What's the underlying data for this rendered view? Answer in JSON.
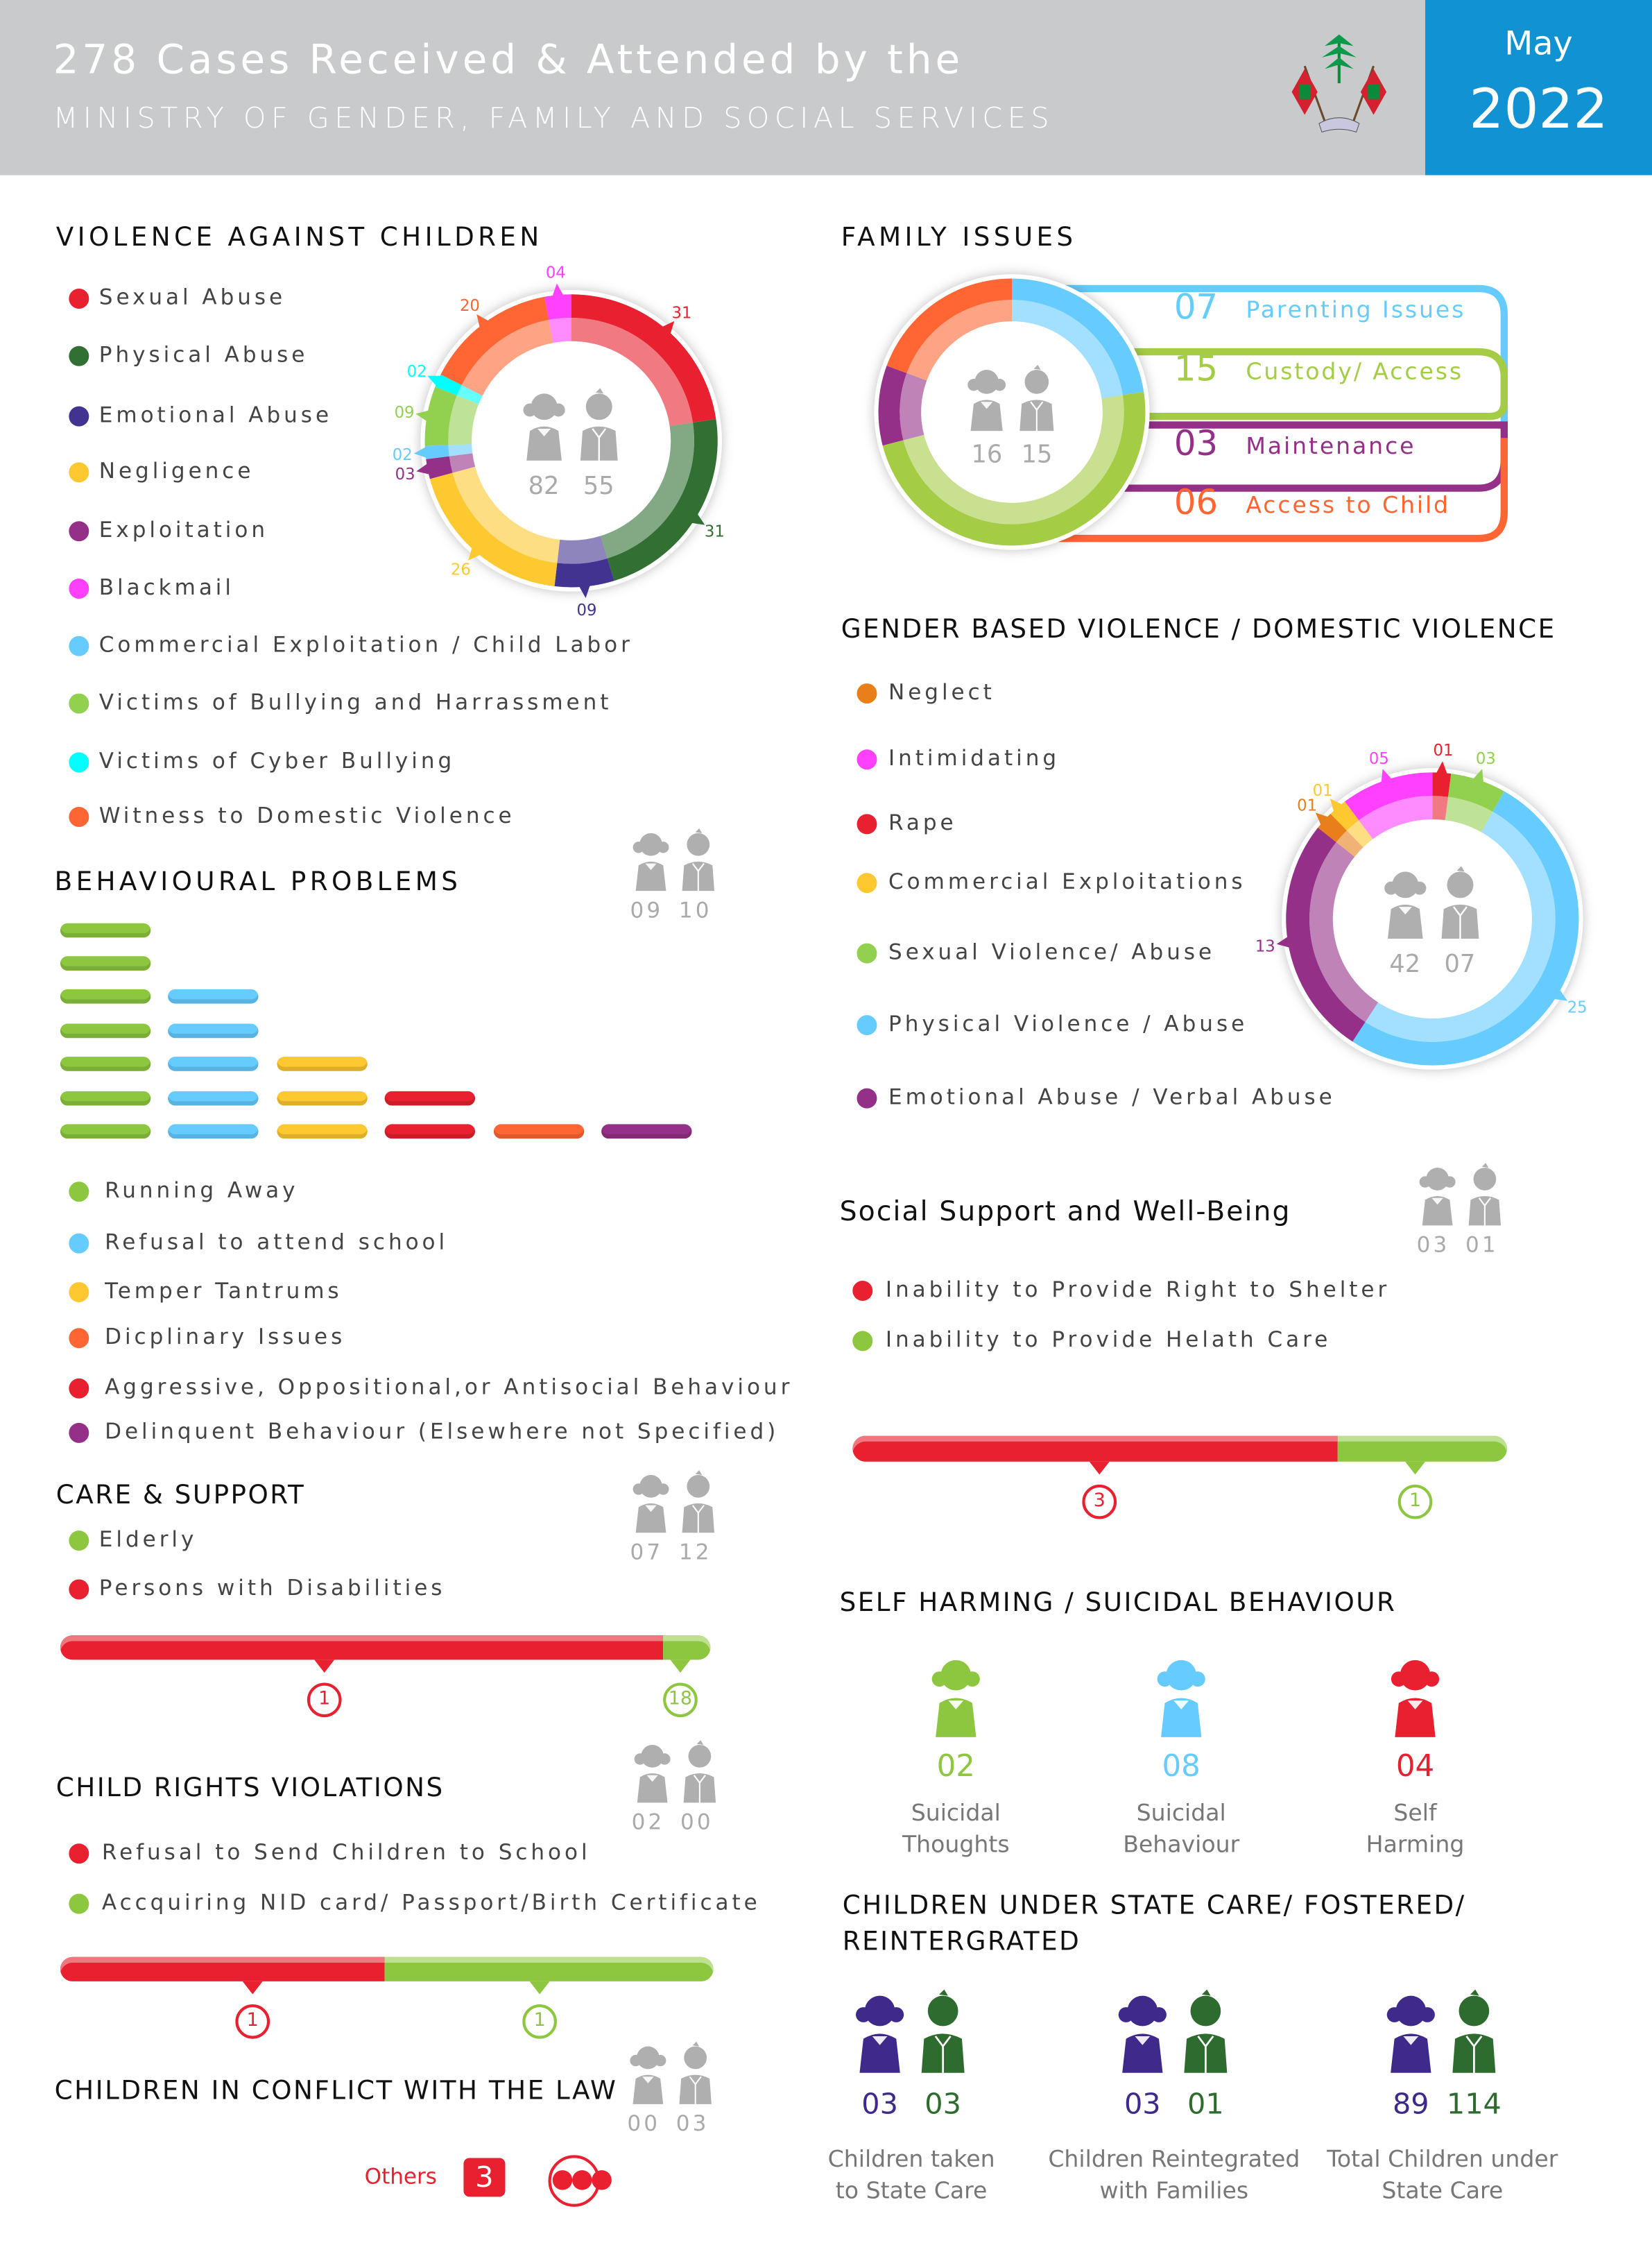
{
  "header": {
    "title": "278 Cases Received & Attended by the",
    "subtitle": "MINISTRY OF GENDER, FAMILY AND SOCIAL SERVICES",
    "month": "May",
    "year": "2022",
    "bg_color": "#c9cacc",
    "accent_color": "#1192d3",
    "emblem_icon": "state-emblem-icon"
  },
  "chart_data": [
    {
      "type": "pie",
      "title": "VIOLENCE AGAINST CHILDREN",
      "center": {
        "girls": "82",
        "boys": "55"
      },
      "slices": [
        {
          "label": "Sexual Abuse",
          "value": 31,
          "text": "31",
          "color": "#e8202f"
        },
        {
          "label": "Physical Abuse",
          "value": 31,
          "text": "31",
          "color": "#317032"
        },
        {
          "label": "Emotional Abuse",
          "value": 9,
          "text": "09",
          "color": "#433390"
        },
        {
          "label": "Negligence",
          "value": 26,
          "text": "26",
          "color": "#fdc830"
        },
        {
          "label": "Exploitation",
          "value": 3,
          "text": "03",
          "color": "#943087"
        },
        {
          "label": "Commercial Exploitation / Child Labor",
          "value": 2,
          "text": "02",
          "color": "#66ccff"
        },
        {
          "label": "Victims of Bullying and Harrassment",
          "value": 9,
          "text": "09",
          "color": "#92d050"
        },
        {
          "label": "Victims of Cyber Bullying",
          "value": 2,
          "text": "02",
          "color": "#00ffff"
        },
        {
          "label": "Witness to Domestic Violence",
          "value": 20,
          "text": "20",
          "color": "#ff6633"
        },
        {
          "label": "Blackmail",
          "value": 4,
          "text": "04",
          "color": "#ff40ff"
        }
      ]
    },
    {
      "type": "pie",
      "title": "FAMILY ISSUES",
      "center": {
        "girls": "16",
        "boys": "15"
      },
      "slices": [
        {
          "label": "Parenting Issues",
          "value": 7,
          "text": "07",
          "color": "#66ccff"
        },
        {
          "label": "Custody/ Access",
          "value": 15,
          "text": "15",
          "color": "#a4cc44"
        },
        {
          "label": "Maintenance",
          "value": 3,
          "text": "03",
          "color": "#943087"
        },
        {
          "label": "Access to Child",
          "value": 6,
          "text": "06",
          "color": "#ff6633"
        }
      ]
    },
    {
      "type": "pie",
      "title": "GENDER BASED VIOLENCE / DOMESTIC VIOLENCE",
      "center": {
        "girls": "42",
        "boys": "07"
      },
      "slices": [
        {
          "label": "Rape",
          "value": 1,
          "text": "01",
          "color": "#e8202f"
        },
        {
          "label": "Sexual Violence/ Abuse",
          "value": 3,
          "text": "03",
          "color": "#92d050"
        },
        {
          "label": "Physical Violence / Abuse",
          "value": 25,
          "text": "25",
          "color": "#66ccff"
        },
        {
          "label": "Emotional Abuse / Verbal Abuse",
          "value": 13,
          "text": "13",
          "color": "#943087"
        },
        {
          "label": "Neglect",
          "value": 1,
          "text": "01",
          "color": "#e87f1a"
        },
        {
          "label": "Commercial Exploitations",
          "value": 1,
          "text": "01",
          "color": "#fdc830"
        },
        {
          "label": "Intimidating",
          "value": 5,
          "text": "05",
          "color": "#ff40ff"
        }
      ]
    },
    {
      "type": "bar",
      "title": "BEHAVIOURAL PROBLEMS",
      "center": {
        "girls": "09",
        "boys": "10"
      },
      "categories": [
        "Running Away",
        "Refusal to attend school",
        "Temper Tantrums",
        "Aggressive, Oppositional,or Antisocial Behaviour",
        "Dicplinary Issues",
        "Delinquent Behaviour (Elsewhere not Specified)"
      ],
      "values": [
        7,
        5,
        3,
        2,
        1,
        1
      ],
      "colors": [
        "#8dc63f",
        "#66ccff",
        "#fdc830",
        "#e8202f",
        "#ff6633",
        "#943087"
      ]
    }
  ],
  "violence": {
    "legend": [
      {
        "label": "Sexual Abuse",
        "color": "#e8202f"
      },
      {
        "label": "Physical Abuse",
        "color": "#317032"
      },
      {
        "label": "Emotional Abuse",
        "color": "#433390"
      },
      {
        "label": "Negligence",
        "color": "#fdc830"
      },
      {
        "label": "Exploitation",
        "color": "#943087"
      },
      {
        "label": "Blackmail",
        "color": "#ff40ff"
      },
      {
        "label": "Commercial Exploitation / Child Labor",
        "color": "#66ccff"
      },
      {
        "label": "Victims of Bullying and Harrassment",
        "color": "#92d050"
      },
      {
        "label": "Victims of Cyber Bullying",
        "color": "#00ffff"
      },
      {
        "label": "Witness to Domestic Violence",
        "color": "#ff6633"
      }
    ]
  },
  "behavioural": {
    "legend": [
      {
        "label": "Running Away",
        "color": "#8dc63f"
      },
      {
        "label": "Refusal to attend school",
        "color": "#66ccff"
      },
      {
        "label": "Temper Tantrums",
        "color": "#fdc830"
      },
      {
        "label": "Dicplinary Issues",
        "color": "#ff6633"
      },
      {
        "label": "Aggressive, Oppositional,or Antisocial Behaviour",
        "color": "#e8202f"
      },
      {
        "label": "Delinquent Behaviour (Elsewhere not Specified)",
        "color": "#943087"
      }
    ]
  },
  "care_support": {
    "title": "CARE & SUPPORT",
    "girls": "07",
    "boys": "12",
    "items": [
      {
        "label": "Elderly",
        "value": 1,
        "text": "1",
        "color": "#8dc63f"
      },
      {
        "label": "Persons with Disabilities",
        "value": 18,
        "text": "18",
        "color": "#e8202f"
      }
    ]
  },
  "child_rights": {
    "title": "CHILD RIGHTS VIOLATIONS",
    "girls": "02",
    "boys": "00",
    "items": [
      {
        "label": "Refusal to Send Children to School",
        "value": 1,
        "text": "1",
        "color": "#e8202f"
      },
      {
        "label": "Accquiring NID card/ Passport/Birth Certificate",
        "value": 1,
        "text": "1",
        "color": "#8dc63f"
      }
    ]
  },
  "conflict_law": {
    "title": "CHILDREN IN CONFLICT WITH THE LAW",
    "girls": "00",
    "boys": "03"
  },
  "others": {
    "label": "Others",
    "count": "3",
    "more_icon": "more-dots-icon"
  },
  "social_support": {
    "title": "Social Support and Well-Being",
    "girls": "03",
    "boys": "01",
    "items": [
      {
        "label": "Inability to Provide Right to Shelter",
        "value": 3,
        "text": "3",
        "color": "#e8202f"
      },
      {
        "label": "Inability to Provide Helath Care",
        "value": 1,
        "text": "1",
        "color": "#8dc63f"
      }
    ]
  },
  "self_harm": {
    "title": "SELF HARMING / SUICIDAL BEHAVIOUR",
    "items": [
      {
        "value": "02",
        "line1": "Suicidal",
        "line2": "Thoughts",
        "color": "#8dc63f"
      },
      {
        "value": "08",
        "line1": "Suicidal",
        "line2": "Behaviour",
        "color": "#66ccff"
      },
      {
        "value": "04",
        "line1": "Self",
        "line2": "Harming",
        "color": "#e8202f"
      }
    ]
  },
  "state_care": {
    "title_line1": "CHILDREN UNDER STATE CARE/ FOSTERED/",
    "title_line2": "REINTERGRATED",
    "girl_color": "#3f2a8c",
    "boy_color": "#2e6b2e",
    "items": [
      {
        "girls": "03",
        "boys": "03",
        "line1": "Children taken",
        "line2": "to State Care"
      },
      {
        "girls": "03",
        "boys": "01",
        "line1": "Children Reintegrated",
        "line2": "with Families"
      },
      {
        "girls": "89",
        "boys": "114",
        "line1": "Total Children under",
        "line2": "State Care"
      }
    ]
  }
}
